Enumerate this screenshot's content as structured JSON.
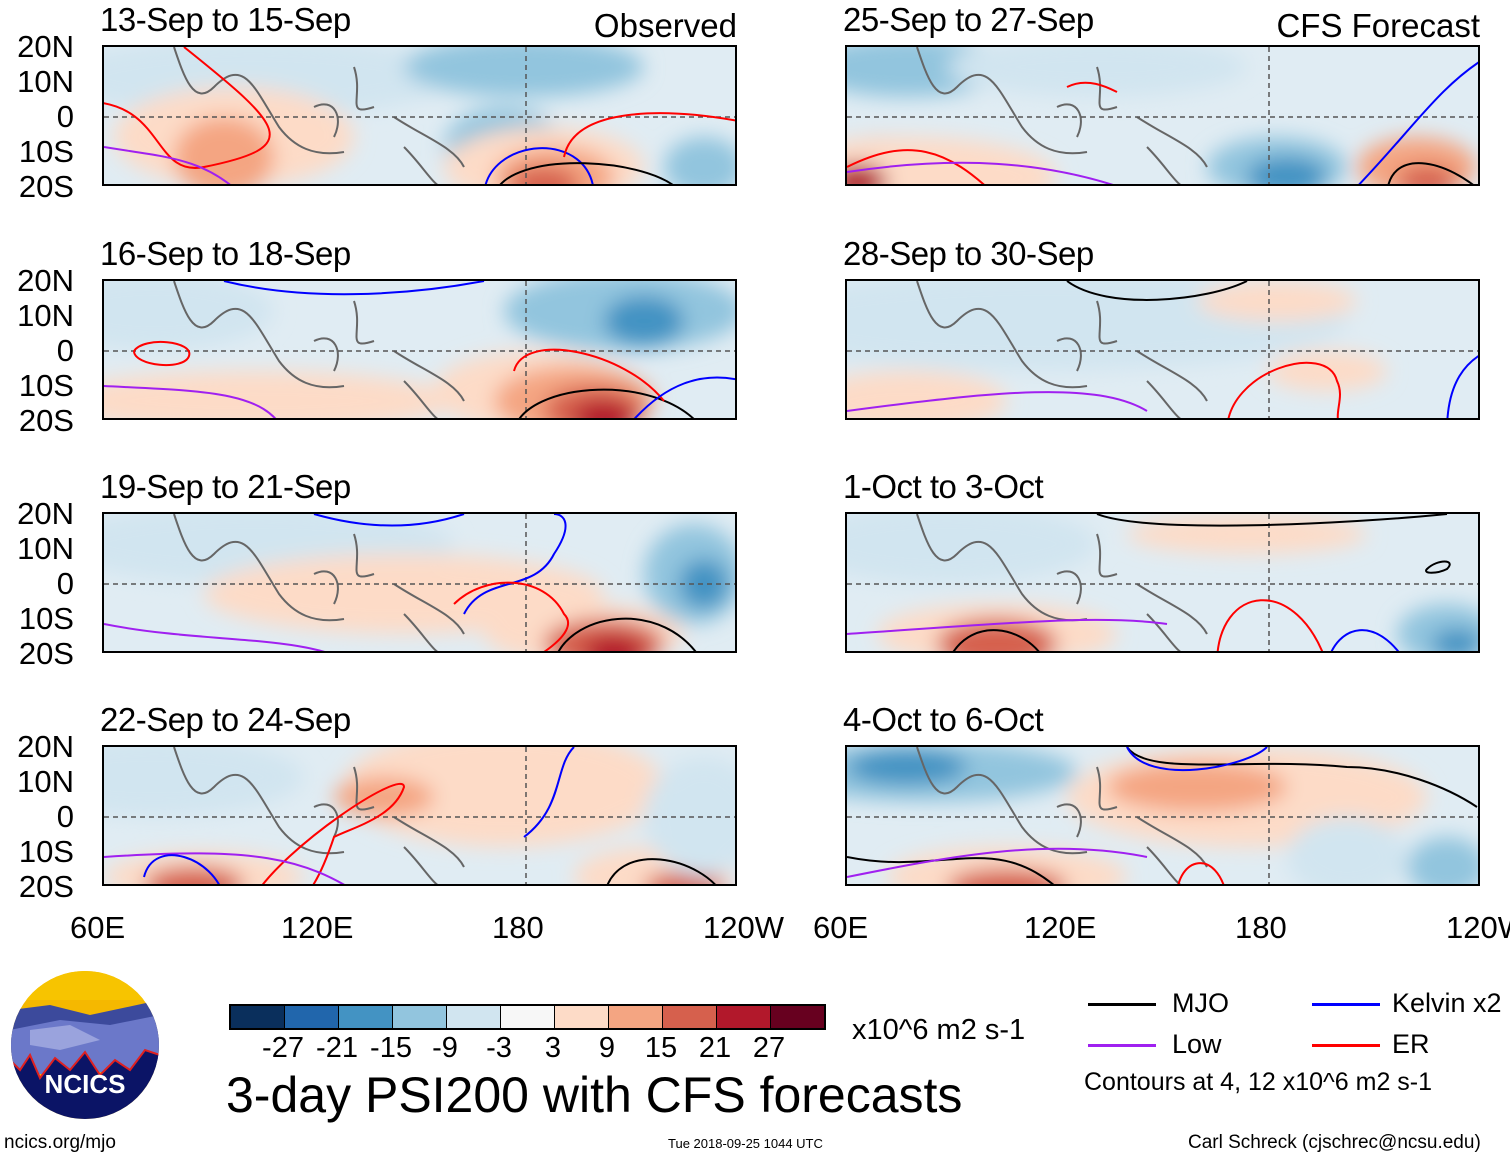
{
  "panels": [
    {
      "title": "13-Sep to 15-Sep",
      "tag": "Observed"
    },
    {
      "title": "25-Sep to 27-Sep",
      "tag": "CFS Forecast"
    },
    {
      "title": "16-Sep to 18-Sep",
      "tag": ""
    },
    {
      "title": "28-Sep to 30-Sep",
      "tag": ""
    },
    {
      "title": "19-Sep to 21-Sep",
      "tag": ""
    },
    {
      "title": "1-Oct to 3-Oct",
      "tag": ""
    },
    {
      "title": "22-Sep to 24-Sep",
      "tag": ""
    },
    {
      "title": "4-Oct to 6-Oct",
      "tag": ""
    }
  ],
  "y_ticks": [
    "20N",
    "10N",
    "0",
    "10S",
    "20S"
  ],
  "x_ticks": [
    "60E",
    "120E",
    "180",
    "120W"
  ],
  "colorbar": {
    "colors": [
      "#0a2f5c",
      "#2166ac",
      "#4393c3",
      "#92c5de",
      "#d1e5f0",
      "#f7f7f7",
      "#fddbc7",
      "#f4a582",
      "#d6604d",
      "#b2182b",
      "#67001f"
    ],
    "labels": [
      "-27",
      "-21",
      "-15",
      "-9",
      "-3",
      "3",
      "9",
      "15",
      "21",
      "27"
    ],
    "units": "x10^6 m2 s-1"
  },
  "title": "3-day PSI200 with CFS forecasts",
  "legend": {
    "items": [
      {
        "label": "MJO",
        "color": "#000000"
      },
      {
        "label": "Kelvin x2",
        "color": "#0000ff"
      },
      {
        "label": "Low",
        "color": "#a020f0"
      },
      {
        "label": "ER",
        "color": "#ff0000"
      }
    ],
    "note": "Contours at 4, 12 x10^6 m2 s-1"
  },
  "logo": {
    "text": "NCICS"
  },
  "footer": {
    "url": "ncics.org/mjo",
    "timestamp": "Tue 2018-09-25 1044 UTC",
    "credit": "Carl Schreck (cjschrec@ncsu.edu)"
  }
}
